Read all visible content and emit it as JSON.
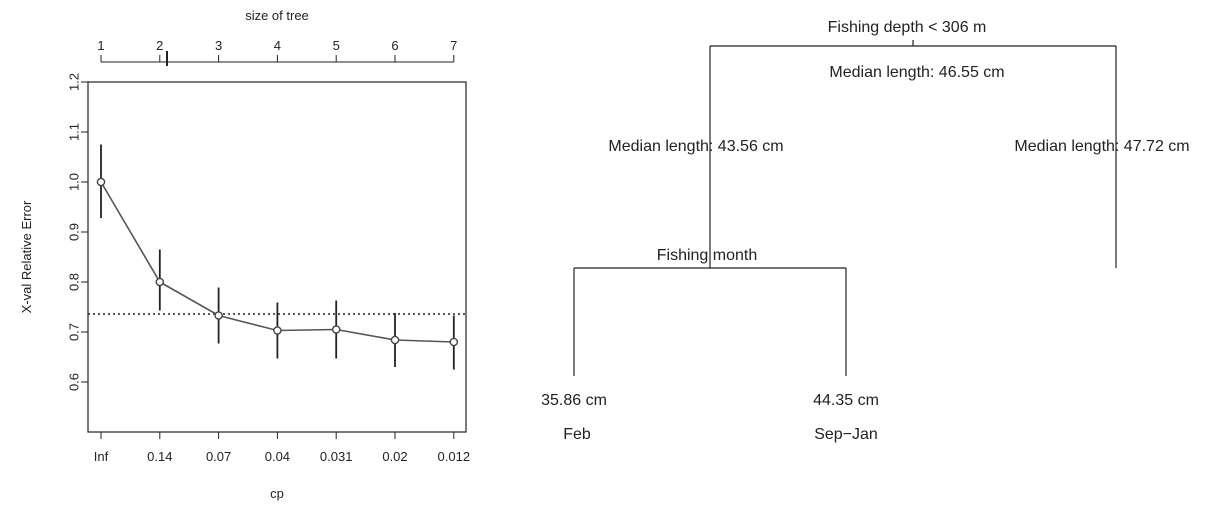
{
  "chart_data": [
    {
      "type": "line",
      "top_axis_label": "size of tree",
      "top_ticks": [
        "1",
        "2",
        "3",
        "4",
        "5",
        "6",
        "7"
      ],
      "xlabel": "cp",
      "categories": [
        "Inf",
        "0.14",
        "0.07",
        "0.04",
        "0.031",
        "0.02",
        "0.012"
      ],
      "ylabel": "X-val Relative Error",
      "ylim": [
        0.5,
        1.2
      ],
      "yticks": [
        "0.6",
        "0.7",
        "0.8",
        "0.9",
        "1.0",
        "1.1",
        "1.2"
      ],
      "series": [
        {
          "values": [
            1.0,
            0.8,
            0.733,
            0.703,
            0.705,
            0.684,
            0.68
          ],
          "error_low": [
            0.928,
            0.743,
            0.677,
            0.647,
            0.647,
            0.63,
            0.625
          ],
          "error_high": [
            1.075,
            0.865,
            0.789,
            0.759,
            0.763,
            0.738,
            0.733
          ]
        }
      ],
      "reference_line": 0.736,
      "reference_line_style": "dotted",
      "top_marker_at": "2",
      "grid": false
    },
    {
      "type": "tree",
      "root_split": "Fishing depth < 306 m",
      "root_median": "Median length: 46.55 cm",
      "left_median": "Median length: 43.56 cm",
      "right_median": "Median length: 47.72 cm",
      "left_split": "Fishing month",
      "leaves": [
        {
          "value": "35.86 cm",
          "label": "Feb"
        },
        {
          "value": "44.35 cm",
          "label": "Sep−Jan"
        }
      ]
    }
  ]
}
